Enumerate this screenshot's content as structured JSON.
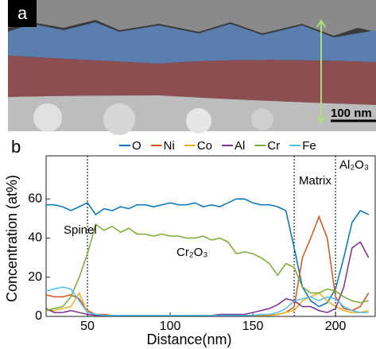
{
  "figure": {
    "panel_labels": [
      "a",
      "b"
    ],
    "scale_bar": "100 nm"
  },
  "chart_data": {
    "type": "line",
    "x_label": "Distance(nm)",
    "y_label": "Concentration (at%)",
    "x": [
      25,
      30,
      35,
      40,
      45,
      50,
      55,
      60,
      65,
      70,
      75,
      80,
      85,
      90,
      95,
      100,
      105,
      110,
      115,
      120,
      125,
      130,
      135,
      140,
      145,
      150,
      155,
      160,
      165,
      170,
      175,
      180,
      185,
      190,
      195,
      200,
      205,
      210,
      215,
      220
    ],
    "series": [
      {
        "name": "O",
        "color": "#0072bd",
        "values": [
          57,
          57,
          56,
          54,
          56,
          58,
          52,
          55,
          54,
          56,
          55,
          57,
          57,
          56,
          57,
          58,
          57,
          57,
          58,
          56,
          57,
          56,
          58,
          60,
          60,
          58,
          57,
          57,
          56,
          54,
          35,
          15,
          8,
          5,
          7,
          14,
          30,
          48,
          54,
          52
        ]
      },
      {
        "name": "Ni",
        "color": "#d95319",
        "values": [
          11,
          10,
          10,
          11,
          9,
          3,
          1,
          1,
          0.5,
          0.5,
          0.5,
          0.5,
          0.5,
          0.5,
          0.5,
          0.5,
          0.5,
          0.5,
          0.5,
          0.5,
          0.5,
          0.5,
          0.5,
          0.5,
          0.5,
          0.5,
          0.5,
          0.5,
          1,
          2,
          5,
          30,
          40,
          51,
          40,
          10,
          4,
          3,
          5,
          12
        ]
      },
      {
        "name": "Co",
        "color": "#edb120",
        "values": [
          3,
          3,
          4,
          5,
          12,
          2,
          1,
          0.5,
          0.5,
          0.5,
          0.5,
          0.5,
          0.5,
          0.5,
          0.5,
          0.5,
          0.5,
          0.5,
          0.5,
          0.5,
          0.5,
          0.5,
          0.5,
          0.5,
          0.5,
          0.5,
          0.5,
          0.5,
          1,
          2,
          3,
          8,
          10,
          12,
          8,
          5,
          3,
          2,
          2,
          3
        ]
      },
      {
        "name": "Al",
        "color": "#7e2f8e",
        "values": [
          4,
          2,
          2,
          3,
          2,
          1,
          0.5,
          0.5,
          0.5,
          0.5,
          0.5,
          0.5,
          0.5,
          0.5,
          0.5,
          0.5,
          0.5,
          0.5,
          0.5,
          0.5,
          0.5,
          1,
          1,
          1,
          1,
          2,
          3,
          4,
          6,
          9,
          8,
          5,
          5,
          3,
          2,
          4,
          15,
          35,
          38,
          30
        ]
      },
      {
        "name": "Cr",
        "color": "#77ac30",
        "values": [
          3,
          4,
          5,
          10,
          20,
          32,
          47,
          44,
          46,
          43,
          45,
          42,
          42,
          41,
          42,
          41,
          41,
          40,
          40,
          41,
          39,
          40,
          38,
          32,
          33,
          32,
          30,
          27,
          21,
          27,
          25,
          15,
          12,
          12,
          14,
          13,
          10,
          8,
          7,
          8
        ]
      },
      {
        "name": "Fe",
        "color": "#4dbeee",
        "values": [
          13,
          14,
          15,
          14,
          8,
          2,
          1,
          0.5,
          0.5,
          0.5,
          0.5,
          0.5,
          0.5,
          0.5,
          0.5,
          0.5,
          0.5,
          0.5,
          0.5,
          0.5,
          0.5,
          0.5,
          0.5,
          0.5,
          0.5,
          0.5,
          1,
          1,
          2,
          4,
          8,
          9,
          10,
          8,
          10,
          9,
          5,
          3,
          2,
          2
        ]
      }
    ],
    "xlim": [
      25,
      224
    ],
    "xticks": [
      50,
      100,
      150,
      200
    ],
    "ylim": [
      0,
      82
    ],
    "yticks": [
      0,
      20,
      40,
      60
    ],
    "vlines": [
      50,
      175,
      200
    ],
    "annotations": [
      "Spinel",
      "Cr₂O₃",
      "Matrix",
      "Al₂O₃"
    ]
  }
}
